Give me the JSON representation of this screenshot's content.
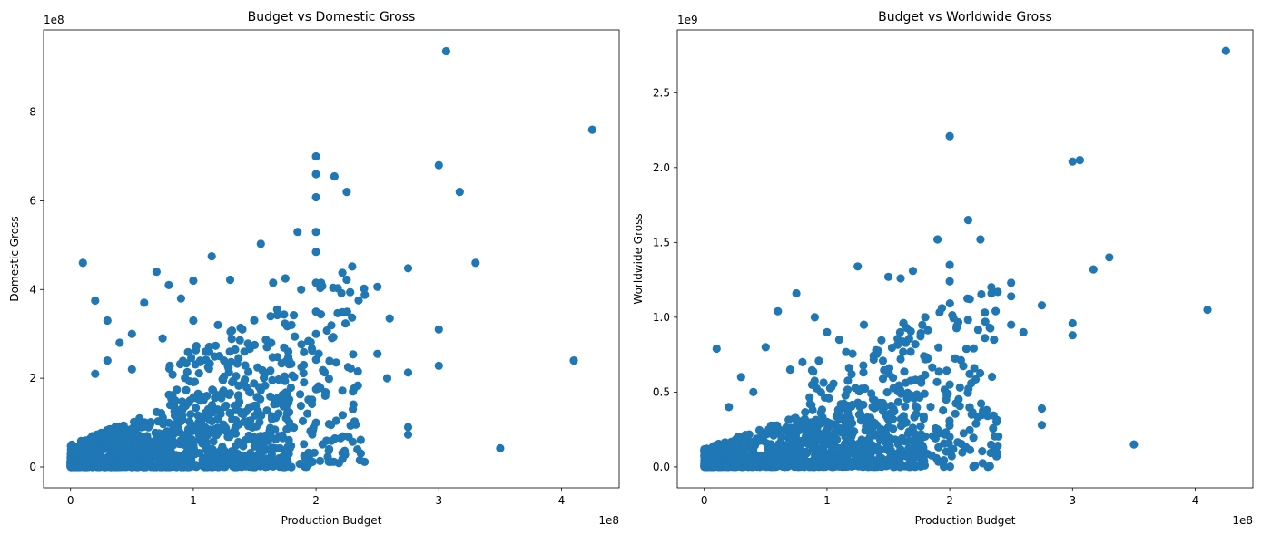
{
  "chart_data": [
    {
      "type": "scatter",
      "title": "Budget vs Domestic Gross",
      "xlabel": "Production Budget",
      "ylabel": "Domestic Gross",
      "x_offset_label": "1e8",
      "y_offset_label": "1e8",
      "xlim": [
        -0.22,
        4.47
      ],
      "ylim": [
        -0.47,
        9.85
      ],
      "x_ticks": [
        0,
        1,
        2,
        3,
        4
      ],
      "x_tick_labels": [
        "0",
        "1",
        "2",
        "3",
        "4"
      ],
      "y_ticks": [
        0,
        2,
        4,
        6,
        8
      ],
      "y_tick_labels": [
        "0",
        "2",
        "4",
        "6",
        "8"
      ],
      "color": "#1f77b4",
      "grid": false,
      "x_unit": "1e8",
      "y_unit": "1e8",
      "x": [
        3.06,
        4.25,
        2.0,
        3.0,
        2.0,
        2.15,
        2.25,
        3.17,
        2.0,
        2.0,
        1.85,
        2.0,
        3.3,
        1.55,
        2.0,
        1.15,
        0.7,
        1.0,
        0.8,
        2.75,
        2.25,
        2.5,
        0.1,
        1.3,
        1.65,
        1.75,
        2.0,
        2.58,
        3.0,
        0.5,
        2.5,
        3.0,
        2.75,
        2.6,
        2.0,
        1.5,
        1.25,
        2.75,
        2.75,
        3.5,
        4.1,
        2.2,
        2.3,
        0.2,
        1.2,
        0.9,
        0.6,
        1.0,
        1.4,
        1.8,
        0.4,
        0.3,
        1.1,
        0.75,
        1.9,
        0.5,
        0.3,
        0.2,
        1.6,
        2.0
      ],
      "y": [
        9.37,
        7.6,
        7.0,
        6.8,
        6.6,
        6.55,
        6.2,
        6.2,
        6.08,
        5.3,
        5.3,
        4.85,
        4.6,
        5.03,
        4.15,
        4.75,
        4.4,
        4.2,
        4.1,
        4.48,
        4.22,
        4.06,
        4.6,
        4.22,
        4.15,
        4.25,
        3.5,
        2.0,
        3.1,
        3.0,
        2.55,
        2.28,
        2.13,
        3.35,
        1.0,
        2.75,
        2.4,
        0.9,
        0.73,
        0.42,
        2.4,
        0.65,
        1.7,
        3.75,
        3.2,
        3.8,
        3.7,
        3.3,
        3.1,
        3.2,
        2.8,
        3.3,
        2.6,
        2.9,
        2.3,
        2.2,
        2.4,
        2.1,
        2.7,
        3.0
      ]
    },
    {
      "type": "scatter",
      "title": "Budget vs Worldwide Gross",
      "xlabel": "Production Budget",
      "ylabel": "Worldwide Gross",
      "x_offset_label": "1e8",
      "y_offset_label": "1e9",
      "xlim": [
        -0.22,
        4.47
      ],
      "ylim": [
        -0.14,
        2.92
      ],
      "x_ticks": [
        0,
        1,
        2,
        3,
        4
      ],
      "x_tick_labels": [
        "0",
        "1",
        "2",
        "3",
        "4"
      ],
      "y_ticks": [
        0.0,
        0.5,
        1.0,
        1.5,
        2.0,
        2.5
      ],
      "y_tick_labels": [
        "0.0",
        "0.5",
        "1.0",
        "1.5",
        "2.0",
        "2.5"
      ],
      "color": "#1f77b4",
      "grid": false,
      "x_unit": "1e8",
      "y_unit": "1e9",
      "x": [
        4.25,
        2.0,
        3.0,
        3.06,
        2.15,
        2.25,
        1.9,
        3.3,
        3.17,
        2.0,
        2.0,
        1.25,
        1.7,
        1.5,
        1.6,
        2.5,
        2.5,
        2.5,
        2.6,
        2.75,
        2.75,
        2.75,
        3.0,
        3.0,
        3.5,
        4.1,
        2.0,
        2.2,
        2.3,
        0.75,
        0.9,
        1.0,
        1.1,
        1.4,
        1.8,
        0.6,
        0.1,
        0.5,
        0.3,
        1.2,
        1.5,
        2.0,
        1.8,
        1.3,
        0.8,
        0.2,
        0.4,
        0.7,
        1.0,
        1.9
      ],
      "y": [
        2.78,
        2.21,
        2.04,
        2.05,
        1.65,
        1.52,
        1.52,
        1.4,
        1.32,
        1.35,
        1.24,
        1.34,
        1.31,
        1.27,
        1.26,
        1.23,
        1.14,
        0.95,
        0.9,
        1.08,
        0.39,
        0.28,
        0.96,
        0.88,
        0.15,
        1.05,
        0.55,
        0.66,
        0.38,
        1.16,
        1.0,
        0.9,
        0.85,
        0.78,
        0.72,
        1.04,
        0.79,
        0.8,
        0.6,
        0.62,
        0.05,
        0.2,
        1.0,
        0.95,
        0.7,
        0.4,
        0.5,
        0.65,
        0.3,
        0.25
      ]
    }
  ]
}
